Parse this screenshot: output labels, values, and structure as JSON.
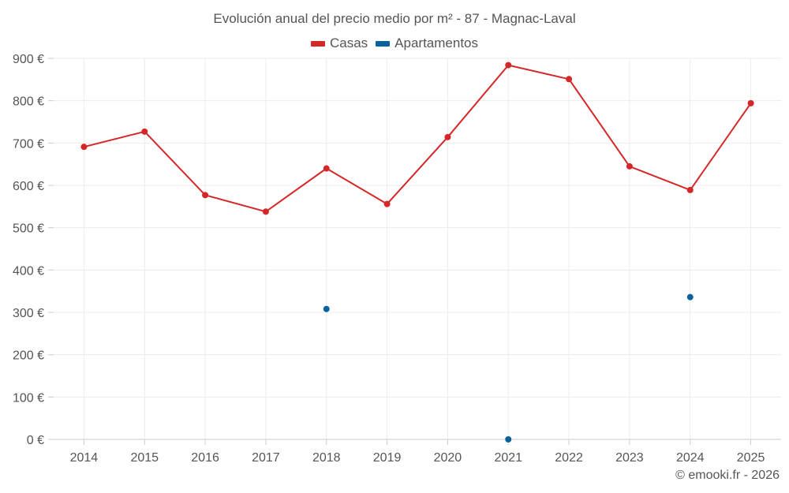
{
  "chart_data": {
    "type": "line",
    "title": "Evolución anual del precio medio por m² - 87 - Magnac-Laval",
    "xlabel": "",
    "ylabel": "",
    "categories": [
      "2014",
      "2015",
      "2016",
      "2017",
      "2018",
      "2019",
      "2020",
      "2021",
      "2022",
      "2023",
      "2024",
      "2025"
    ],
    "ylim": [
      0,
      900
    ],
    "yticks": [
      0,
      100,
      200,
      300,
      400,
      500,
      600,
      700,
      800,
      900
    ],
    "ytick_labels": [
      "0 €",
      "100 €",
      "200 €",
      "300 €",
      "400 €",
      "500 €",
      "600 €",
      "700 €",
      "800 €",
      "900 €"
    ],
    "grid": true,
    "legend_position": "top-center",
    "series": [
      {
        "name": "Casas",
        "color": "#d62728",
        "values": [
          691,
          727,
          577,
          538,
          640,
          556,
          714,
          884,
          851,
          645,
          589,
          794
        ]
      },
      {
        "name": "Apartamentos",
        "color": "#08639c",
        "values": [
          null,
          null,
          null,
          null,
          308,
          null,
          null,
          0,
          null,
          null,
          336,
          null
        ]
      }
    ]
  },
  "footer": {
    "credit": "© emooki.fr - 2026"
  }
}
